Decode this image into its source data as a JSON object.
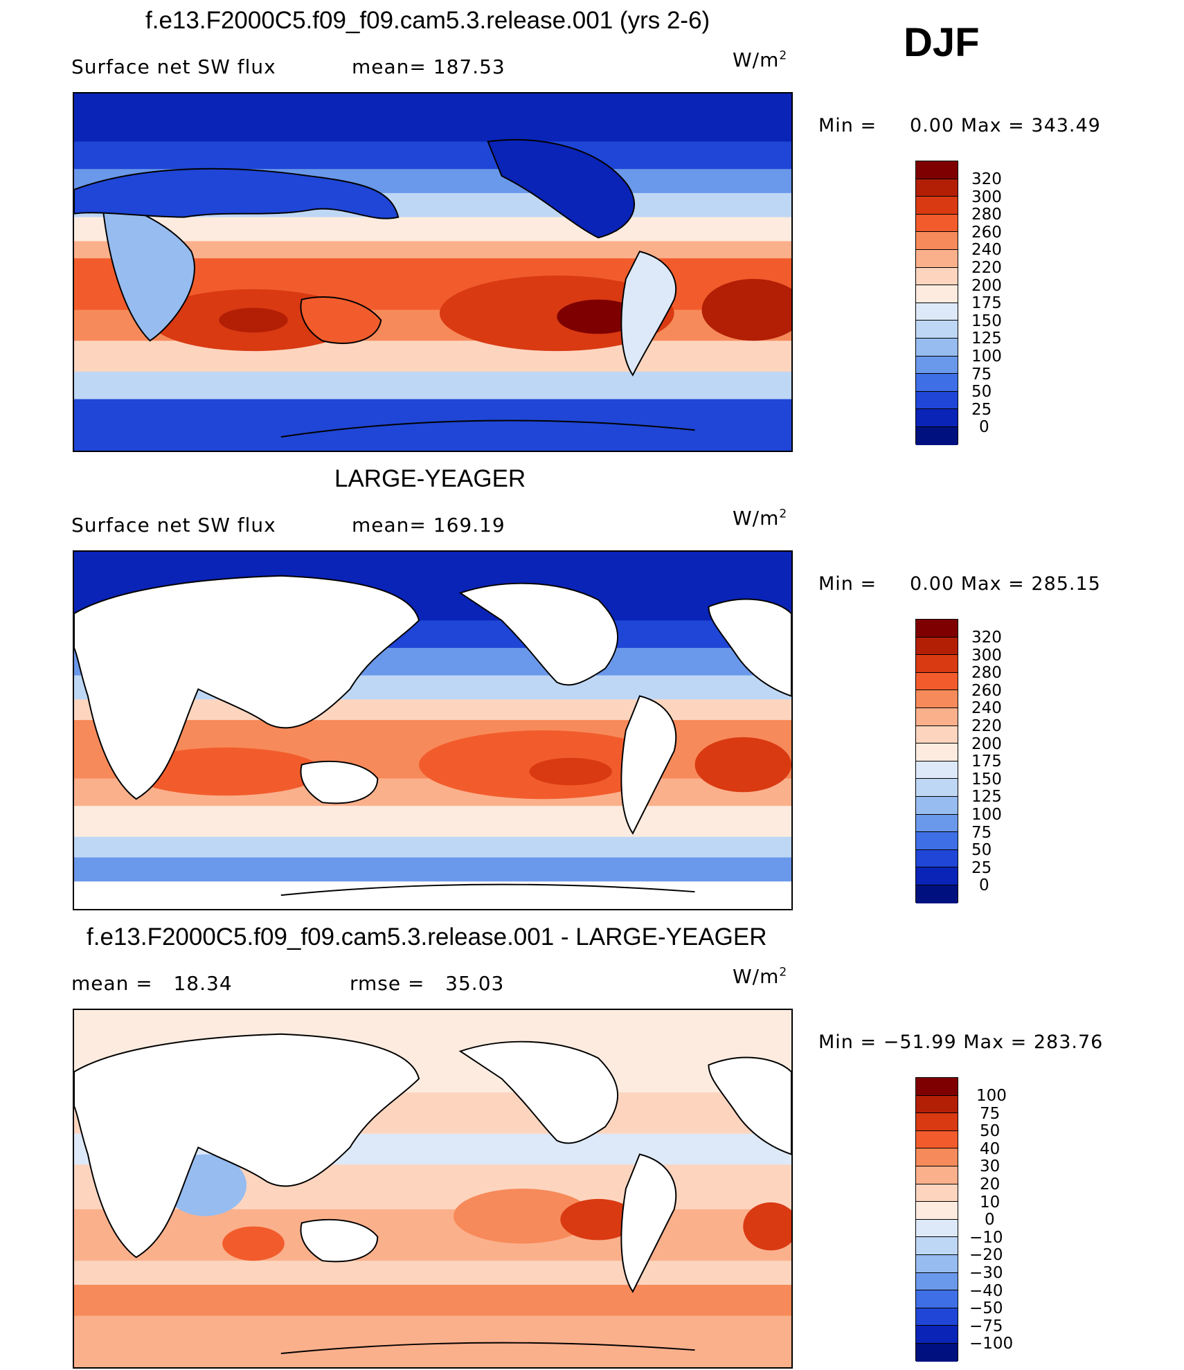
{
  "season": "DJF",
  "panels": [
    {
      "title": "f.e13.F2000C5.f09_f09.cam5.3.release.001 (yrs 2-6)",
      "left_text": "Surface net SW flux",
      "mid_text": "mean= 187.53",
      "units": "W/m",
      "units_sup": "2",
      "min_label": "Min =",
      "min_value": "0.00",
      "max_label": "Max =",
      "max_value": "343.49",
      "levels": [
        "320",
        "300",
        "280",
        "260",
        "240",
        "220",
        "200",
        "175",
        "150",
        "125",
        "100",
        "75",
        "50",
        "25",
        "0"
      ]
    },
    {
      "title": "LARGE-YEAGER",
      "left_text": "Surface net SW flux",
      "mid_text": "mean= 169.19",
      "units": "W/m",
      "units_sup": "2",
      "min_label": "Min =",
      "min_value": "0.00",
      "max_label": "Max =",
      "max_value": "285.15",
      "levels": [
        "320",
        "300",
        "280",
        "260",
        "240",
        "220",
        "200",
        "175",
        "150",
        "125",
        "100",
        "75",
        "50",
        "25",
        "0"
      ]
    },
    {
      "title": "f.e13.F2000C5.f09_f09.cam5.3.release.001 - LARGE-YEAGER",
      "left_text": "mean =   18.34",
      "mid_text": "rmse =   35.03",
      "units": "W/m",
      "units_sup": "2",
      "min_label": "Min =",
      "min_value": "−51.99",
      "max_label": "Max =",
      "max_value": "283.76",
      "levels": [
        "100",
        "75",
        "50",
        "40",
        "30",
        "20",
        "10",
        "0",
        "−10",
        "−20",
        "−30",
        "−40",
        "−50",
        "−75",
        "−100"
      ]
    }
  ],
  "colors": {
    "abs_scale": [
      "#7f0000",
      "#b31f05",
      "#d93a12",
      "#f25c2c",
      "#f78a5a",
      "#fbb08c",
      "#fdd5bf",
      "#fdebdf",
      "#dde9f8",
      "#bed7f5",
      "#96bcf0",
      "#6a98ea",
      "#3f6fe6",
      "#1f46d6",
      "#0a24b8",
      "#00117f"
    ],
    "diff_scale": [
      "#7f0000",
      "#b31f05",
      "#d93a12",
      "#f25c2c",
      "#f78a5a",
      "#fbb08c",
      "#fdd5bf",
      "#fdebdf",
      "#dde9f8",
      "#bed7f5",
      "#96bcf0",
      "#6a98ea",
      "#3f6fe6",
      "#1f46d6",
      "#0a24b8",
      "#00117f"
    ]
  }
}
